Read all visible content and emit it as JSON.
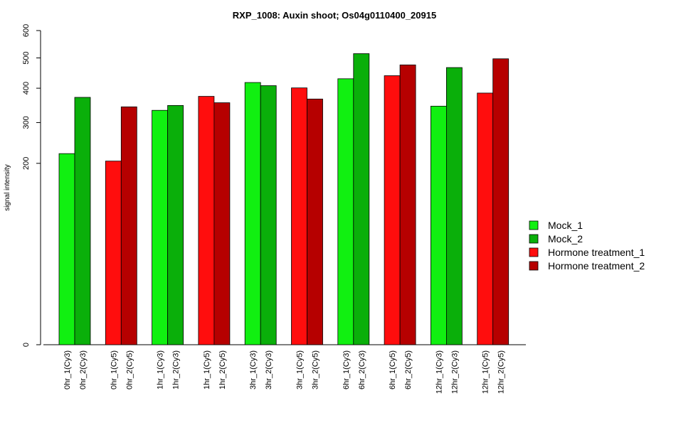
{
  "chart_data": {
    "type": "bar",
    "title": "RXP_1008: Auxin shoot; Os04g0110400_20915",
    "xlabel": "",
    "ylabel": "signal intensity",
    "y_ticks": [
      0,
      200,
      300,
      400,
      500,
      600
    ],
    "ylim": [
      0,
      600
    ],
    "y_scale": "sqrt",
    "legend_position": "right",
    "series": [
      {
        "name": "Mock_1",
        "color": "#11f011"
      },
      {
        "name": "Mock_2",
        "color": "#0aaf0a"
      },
      {
        "name": "Hormone treatment_1",
        "color": "#ff0d0d"
      },
      {
        "name": "Hormone treatment_2",
        "color": "#b60000"
      }
    ],
    "bars": [
      {
        "label": "0hr_1(Cy3)",
        "value": 222,
        "series": "Mock_1"
      },
      {
        "label": "0hr_2(Cy3)",
        "value": 372,
        "series": "Mock_2"
      },
      {
        "label": "0hr_1(Cy5)",
        "value": 205,
        "series": "Hormone treatment_1"
      },
      {
        "label": "0hr_2(Cy5)",
        "value": 344,
        "series": "Hormone treatment_2"
      },
      {
        "label": "1hr_1(Cy3)",
        "value": 334,
        "series": "Mock_1"
      },
      {
        "label": "1hr_2(Cy3)",
        "value": 348,
        "series": "Mock_2"
      },
      {
        "label": "1hr_1(Cy5)",
        "value": 375,
        "series": "Hormone treatment_1"
      },
      {
        "label": "1hr_2(Cy5)",
        "value": 356,
        "series": "Hormone treatment_2"
      },
      {
        "label": "3hr_1(Cy3)",
        "value": 418,
        "series": "Mock_1"
      },
      {
        "label": "3hr_2(Cy3)",
        "value": 408,
        "series": "Mock_2"
      },
      {
        "label": "3hr_1(Cy5)",
        "value": 401,
        "series": "Hormone treatment_1"
      },
      {
        "label": "3hr_2(Cy5)",
        "value": 367,
        "series": "Hormone treatment_2"
      },
      {
        "label": "6hr_1(Cy3)",
        "value": 430,
        "series": "Mock_1"
      },
      {
        "label": "6hr_2(Cy3)",
        "value": 515,
        "series": "Mock_2"
      },
      {
        "label": "6hr_1(Cy5)",
        "value": 440,
        "series": "Hormone treatment_1"
      },
      {
        "label": "6hr_2(Cy5)",
        "value": 476,
        "series": "Hormone treatment_2"
      },
      {
        "label": "12hr_1(Cy3)",
        "value": 346,
        "series": "Mock_1"
      },
      {
        "label": "12hr_2(Cy3)",
        "value": 467,
        "series": "Mock_2"
      },
      {
        "label": "12hr_1(Cy5)",
        "value": 385,
        "series": "Hormone treatment_1"
      },
      {
        "label": "12hr_2(Cy5)",
        "value": 497,
        "series": "Hormone treatment_2"
      }
    ]
  }
}
